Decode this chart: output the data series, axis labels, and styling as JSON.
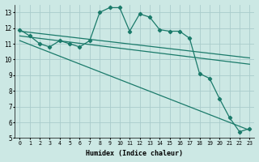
{
  "xlabel": "Humidex (Indice chaleur)",
  "bg_color": "#cce8e4",
  "grid_color": "#aacccc",
  "line_color": "#1a7a6a",
  "ylim": [
    5,
    13.5
  ],
  "xlim": [
    -0.5,
    23.5
  ],
  "yticks": [
    5,
    6,
    7,
    8,
    9,
    10,
    11,
    12,
    13
  ],
  "xticks": [
    0,
    1,
    2,
    3,
    4,
    5,
    6,
    7,
    8,
    9,
    10,
    11,
    12,
    13,
    14,
    15,
    16,
    17,
    18,
    19,
    20,
    21,
    22,
    23
  ],
  "lines": [
    {
      "x": [
        0,
        1,
        2,
        3,
        4,
        5,
        6,
        7,
        8,
        9,
        10,
        11,
        12,
        13,
        14,
        15,
        16,
        17,
        18,
        19,
        20,
        21,
        22,
        23
      ],
      "y": [
        11.9,
        11.5,
        11.0,
        10.8,
        11.2,
        11.0,
        10.8,
        11.2,
        13.0,
        13.3,
        13.3,
        11.8,
        12.9,
        12.7,
        11.9,
        11.8,
        11.8,
        11.35,
        9.1,
        8.8,
        7.5,
        6.3,
        5.4,
        5.6
      ],
      "has_markers": true
    },
    {
      "x": [
        0,
        23
      ],
      "y": [
        11.8,
        10.1
      ],
      "has_markers": false
    },
    {
      "x": [
        0,
        23
      ],
      "y": [
        11.5,
        9.7
      ],
      "has_markers": false
    },
    {
      "x": [
        0,
        23
      ],
      "y": [
        11.2,
        5.5
      ],
      "has_markers": false
    }
  ]
}
